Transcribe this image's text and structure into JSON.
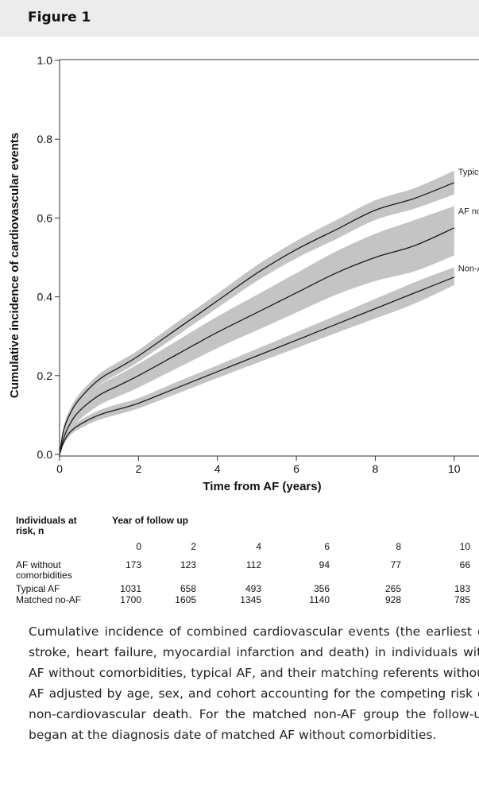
{
  "figure_title": "Figure 1",
  "chart_data": {
    "type": "line",
    "title": "",
    "xlabel": "Time from AF (years)",
    "ylabel": "Cumulative incidence of cardiovascular events",
    "xlim": [
      0,
      12.5
    ],
    "ylim": [
      0,
      1.0
    ],
    "xticks": [
      0,
      2,
      4,
      6,
      8,
      10
    ],
    "yticks": [
      0.0,
      0.2,
      0.4,
      0.6,
      0.8,
      1.0
    ],
    "ytick_labels": [
      "0.0",
      "0.2",
      "0.4",
      "0.6",
      "0.8",
      "1.0"
    ],
    "grid": false,
    "band_color": "#c4c4c4",
    "line_color": "#1a1a1a",
    "series": [
      {
        "name": "Typical AF",
        "x": [
          0,
          0.1,
          0.25,
          0.5,
          1,
          1.5,
          2,
          3,
          4,
          5,
          6,
          7,
          8,
          9,
          10
        ],
        "y": [
          0,
          0.06,
          0.1,
          0.14,
          0.19,
          0.22,
          0.25,
          0.32,
          0.39,
          0.46,
          0.52,
          0.57,
          0.62,
          0.65,
          0.69
        ],
        "lower": [
          0,
          0.05,
          0.088,
          0.127,
          0.176,
          0.205,
          0.235,
          0.303,
          0.372,
          0.44,
          0.498,
          0.546,
          0.595,
          0.624,
          0.66
        ],
        "upper": [
          0,
          0.07,
          0.112,
          0.153,
          0.204,
          0.235,
          0.265,
          0.337,
          0.408,
          0.48,
          0.542,
          0.594,
          0.645,
          0.676,
          0.72
        ]
      },
      {
        "name": "AF no comorbidity",
        "x": [
          0,
          0.1,
          0.25,
          0.5,
          1,
          1.5,
          2,
          3,
          4,
          5,
          6,
          7,
          8,
          9,
          10
        ],
        "y": [
          0,
          0.04,
          0.075,
          0.11,
          0.15,
          0.175,
          0.2,
          0.255,
          0.31,
          0.36,
          0.41,
          0.46,
          0.5,
          0.53,
          0.575
        ],
        "lower": [
          0,
          0.03,
          0.058,
          0.088,
          0.125,
          0.148,
          0.17,
          0.22,
          0.27,
          0.315,
          0.36,
          0.405,
          0.44,
          0.465,
          0.505
        ],
        "upper": [
          0,
          0.05,
          0.092,
          0.132,
          0.175,
          0.202,
          0.23,
          0.29,
          0.35,
          0.405,
          0.46,
          0.515,
          0.56,
          0.595,
          0.63
        ]
      },
      {
        "name": "Non-AF",
        "x": [
          0,
          0.1,
          0.25,
          0.5,
          1,
          1.5,
          2,
          3,
          4,
          5,
          6,
          7,
          8,
          9,
          10
        ],
        "y": [
          0,
          0.03,
          0.055,
          0.075,
          0.1,
          0.115,
          0.13,
          0.17,
          0.21,
          0.25,
          0.29,
          0.33,
          0.37,
          0.41,
          0.45
        ],
        "lower": [
          0,
          0.025,
          0.046,
          0.065,
          0.088,
          0.102,
          0.117,
          0.155,
          0.194,
          0.232,
          0.27,
          0.308,
          0.345,
          0.383,
          0.43
        ],
        "upper": [
          0,
          0.035,
          0.064,
          0.085,
          0.112,
          0.128,
          0.143,
          0.185,
          0.226,
          0.268,
          0.31,
          0.352,
          0.395,
          0.437,
          0.475
        ]
      }
    ],
    "series_labels": [
      "Typical AF",
      "AF no comorbidity",
      "Non-AF"
    ]
  },
  "risk_table": {
    "header_left": [
      "Individuals at",
      "risk, n"
    ],
    "header_right": "Year of follow up",
    "years": [
      "0",
      "2",
      "4",
      "6",
      "8",
      "10"
    ],
    "rows": [
      {
        "label": [
          "AF without",
          "comorbidities"
        ],
        "values": [
          "173",
          "123",
          "112",
          "94",
          "77",
          "66"
        ]
      },
      {
        "label": [
          "Typical AF"
        ],
        "values": [
          "1031",
          "658",
          "493",
          "356",
          "265",
          "183"
        ]
      },
      {
        "label": [
          "Matched no-AF"
        ],
        "values": [
          "1700",
          "1605",
          "1345",
          "1140",
          "928",
          "785"
        ]
      }
    ]
  },
  "caption": "Cumulative incidence of combined cardiovascular events (the earliest of stroke, heart failure, myocardial infarction and death) in individuals with AF without comorbidities, typical AF, and their matching referents without AF adjusted by age, sex, and cohort accounting for the competing risk of non-cardiovascular death. For the matched non-AF group the follow-up began at the diagnosis date of matched AF without comorbidities."
}
